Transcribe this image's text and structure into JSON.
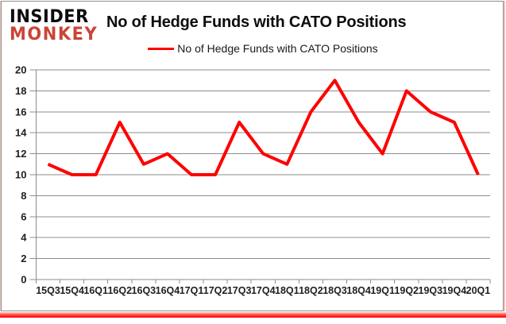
{
  "logo": {
    "line1": "INSIDER",
    "line2": "MONKEY"
  },
  "header": {
    "title": "No of Hedge Funds with CATO Positions"
  },
  "legend": {
    "label": "No of Hedge Funds with CATO Positions"
  },
  "colors": {
    "line": "#fe0000",
    "grid": "#8c8c8c",
    "axis_text": "#1f1f1f",
    "logo_accent": "#cb4437",
    "frame_border": "#8f8f8f",
    "bottom_bar": "#fe0000"
  },
  "chart_data": {
    "type": "line",
    "title": "No of Hedge Funds with CATO Positions",
    "categories": [
      "15Q3",
      "15Q4",
      "16Q1",
      "16Q2",
      "16Q3",
      "16Q4",
      "17Q1",
      "17Q2",
      "17Q3",
      "17Q4",
      "18Q1",
      "18Q2",
      "18Q3",
      "18Q4",
      "19Q1",
      "19Q2",
      "19Q3",
      "19Q4",
      "20Q1"
    ],
    "series": [
      {
        "name": "No of Hedge Funds with CATO Positions",
        "color": "#fe0000",
        "values": [
          11,
          10,
          10,
          15,
          11,
          12,
          10,
          10,
          15,
          12,
          11,
          16,
          19,
          15,
          12,
          18,
          16,
          15,
          10
        ]
      }
    ],
    "xlabel": "",
    "ylabel": "",
    "ylim": [
      0,
      20
    ],
    "ytick_step": 2,
    "grid": true,
    "legend_position": "top-center"
  }
}
